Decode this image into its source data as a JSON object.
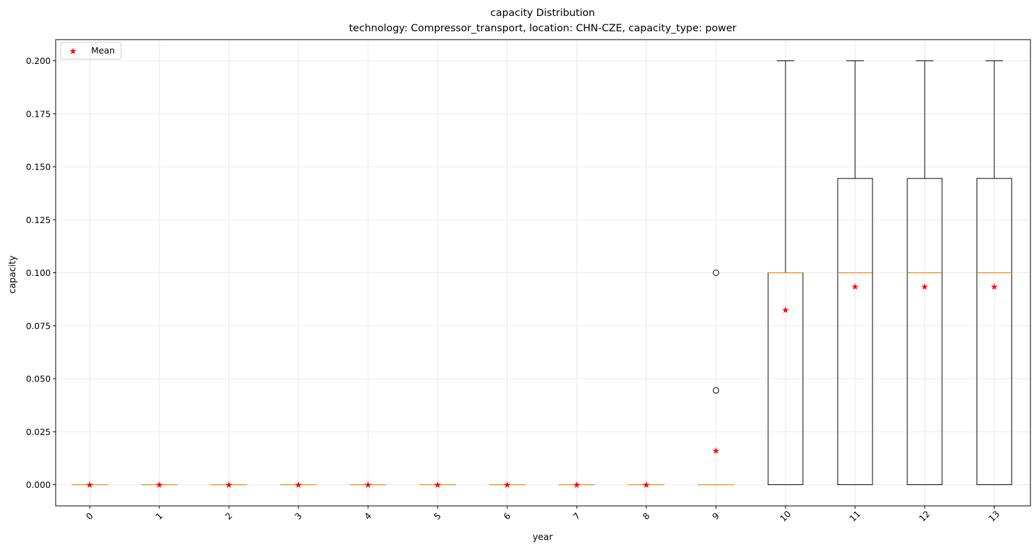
{
  "chart_data": {
    "type": "boxplot",
    "title": "capacity Distribution",
    "subtitle": "technology: Compressor_transport, location: CHN-CZE, capacity_type: power",
    "xlabel": "year",
    "ylabel": "capacity",
    "categories": [
      "0",
      "1",
      "2",
      "3",
      "4",
      "5",
      "6",
      "7",
      "8",
      "9",
      "10",
      "11",
      "12",
      "13"
    ],
    "ylim": [
      -0.01,
      0.21
    ],
    "yticks": [
      0.0,
      0.025,
      0.05,
      0.075,
      0.1,
      0.125,
      0.15,
      0.175,
      0.2
    ],
    "ytick_labels": [
      "0.000",
      "0.025",
      "0.050",
      "0.075",
      "0.100",
      "0.125",
      "0.150",
      "0.175",
      "0.200"
    ],
    "grid": true,
    "legend": {
      "position": "top-left",
      "entries": [
        "Mean"
      ]
    },
    "colors": {
      "box": "#000000",
      "median": "#ff7f0e",
      "mean": "#ff0000",
      "grid": "#e5e5e5"
    },
    "boxes": [
      {
        "q1": 0,
        "median": 0,
        "q3": 0,
        "whisker_low": 0,
        "whisker_high": 0,
        "mean": 0,
        "outliers": []
      },
      {
        "q1": 0,
        "median": 0,
        "q3": 0,
        "whisker_low": 0,
        "whisker_high": 0,
        "mean": 0,
        "outliers": []
      },
      {
        "q1": 0,
        "median": 0,
        "q3": 0,
        "whisker_low": 0,
        "whisker_high": 0,
        "mean": 0,
        "outliers": []
      },
      {
        "q1": 0,
        "median": 0,
        "q3": 0,
        "whisker_low": 0,
        "whisker_high": 0,
        "mean": 0,
        "outliers": []
      },
      {
        "q1": 0,
        "median": 0,
        "q3": 0,
        "whisker_low": 0,
        "whisker_high": 0,
        "mean": 0,
        "outliers": []
      },
      {
        "q1": 0,
        "median": 0,
        "q3": 0,
        "whisker_low": 0,
        "whisker_high": 0,
        "mean": 0,
        "outliers": []
      },
      {
        "q1": 0,
        "median": 0,
        "q3": 0,
        "whisker_low": 0,
        "whisker_high": 0,
        "mean": 0,
        "outliers": []
      },
      {
        "q1": 0,
        "median": 0,
        "q3": 0,
        "whisker_low": 0,
        "whisker_high": 0,
        "mean": 0,
        "outliers": []
      },
      {
        "q1": 0,
        "median": 0,
        "q3": 0,
        "whisker_low": 0,
        "whisker_high": 0,
        "mean": 0,
        "outliers": []
      },
      {
        "q1": 0,
        "median": 0,
        "q3": 0,
        "whisker_low": 0,
        "whisker_high": 0,
        "mean": 0.016,
        "outliers": [
          0.0445,
          0.1
        ]
      },
      {
        "q1": 0,
        "median": 0.1,
        "q3": 0.1,
        "whisker_low": 0,
        "whisker_high": 0.2,
        "mean": 0.0825,
        "outliers": []
      },
      {
        "q1": 0,
        "median": 0.1,
        "q3": 0.1445,
        "whisker_low": 0,
        "whisker_high": 0.2,
        "mean": 0.0935,
        "outliers": []
      },
      {
        "q1": 0,
        "median": 0.1,
        "q3": 0.1445,
        "whisker_low": 0,
        "whisker_high": 0.2,
        "mean": 0.0935,
        "outliers": []
      },
      {
        "q1": 0,
        "median": 0.1,
        "q3": 0.1445,
        "whisker_low": 0,
        "whisker_high": 0.2,
        "mean": 0.0935,
        "outliers": []
      }
    ]
  }
}
